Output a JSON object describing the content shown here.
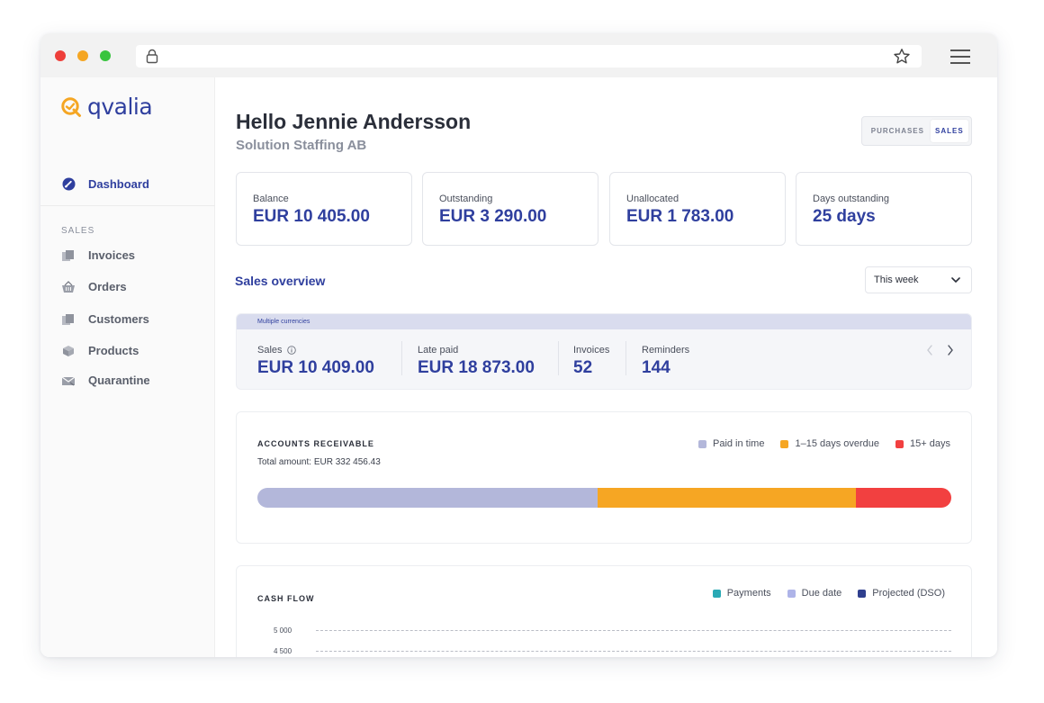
{
  "app": {
    "logo_text": "qvalia",
    "brand_color": "#2f3f9e",
    "logo_color": "#f5a623"
  },
  "browser": {
    "icons": [
      "lock-icon",
      "star-icon",
      "hamburger-menu-icon"
    ]
  },
  "sidebar": {
    "dashboard_label": "Dashboard",
    "section_label": "SALES",
    "items": [
      {
        "label": "Invoices",
        "icon": "invoices-icon"
      },
      {
        "label": "Orders",
        "icon": "basket-icon"
      },
      {
        "label": "Customers",
        "icon": "customers-icon"
      },
      {
        "label": "Products",
        "icon": "box-icon"
      },
      {
        "label": "Quarantine",
        "icon": "quarantine-icon"
      }
    ]
  },
  "header": {
    "greeting": "Hello Jennie Andersson",
    "company": "Solution Staffing AB",
    "toggle": {
      "purchases": "PURCHASES",
      "sales": "SALES",
      "selected": "SALES"
    }
  },
  "kpis": [
    {
      "label": "Balance",
      "value": "EUR 10 405.00"
    },
    {
      "label": "Outstanding",
      "value": "EUR 3 290.00"
    },
    {
      "label": "Unallocated",
      "value": "EUR 1 783.00"
    },
    {
      "label": "Days outstanding",
      "value": "25 days"
    }
  ],
  "overview": {
    "title": "Sales overview",
    "range_label": "This week",
    "currency_note": "Multiple currencies",
    "stats": [
      {
        "label": "Sales",
        "value": "EUR 10 409.00"
      },
      {
        "label": "Late paid",
        "value": "EUR 18 873.00"
      },
      {
        "label": "Invoices",
        "value": "52"
      },
      {
        "label": "Reminders",
        "value": "144"
      }
    ]
  },
  "receivables": {
    "title": "ACCOUNTS RECEIVABLE",
    "total": "Total amount: EUR 332 456.43",
    "legend": [
      {
        "label": "Paid in time",
        "color": "#b3b7da"
      },
      {
        "label": "1–15 days overdue",
        "color": "#f6a623"
      },
      {
        "label": "15+ days",
        "color": "#f24040"
      }
    ],
    "shares": [
      0.49,
      0.373,
      0.137
    ]
  },
  "cashflow": {
    "title": "CASH FLOW",
    "legend": [
      {
        "label": "Payments",
        "color": "#2aa9b5"
      },
      {
        "label": "Due date",
        "color": "#aeb4e8"
      },
      {
        "label": "Projected (DSO)",
        "color": "#2f3f8e"
      }
    ],
    "ticks": [
      "5 000",
      "4 500"
    ]
  }
}
